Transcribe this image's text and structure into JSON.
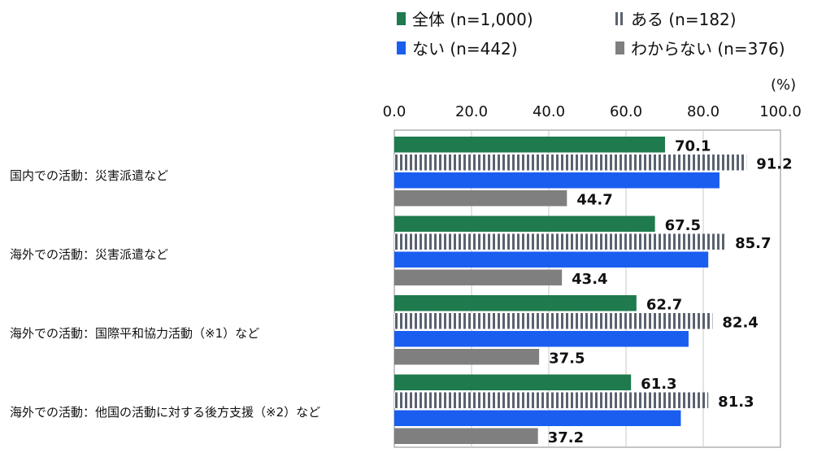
{
  "chart_data": {
    "type": "bar",
    "orientation": "horizontal",
    "unit": "(%)",
    "xlim": [
      0,
      100
    ],
    "ticks": [
      "0.0",
      "20.0",
      "40.0",
      "60.0",
      "80.0",
      "100.0"
    ],
    "categories": [
      "国内での活動：災害派遣など",
      "海外での活動：災害派遣など",
      "海外での活動：国際平和協力活動（※1）など",
      "海外での活動：他国の活動に対する後方支援（※2）など"
    ],
    "series": [
      {
        "name": "全体 (n=1,000)",
        "color": "#1f7a4d",
        "pattern": "solid",
        "values": [
          70.1,
          67.5,
          62.7,
          61.3
        ],
        "labels": [
          "70.1",
          "67.5",
          "62.7",
          "61.3"
        ]
      },
      {
        "name": "ある (n=182)",
        "color": "#5a6270",
        "pattern": "vertical-stripes",
        "values": [
          91.2,
          85.7,
          82.4,
          81.3
        ],
        "labels": [
          "91.2",
          "85.7",
          "82.4",
          "81.3"
        ]
      },
      {
        "name": "ない (n=442)",
        "color": "#1a5ef0",
        "pattern": "solid",
        "values": [
          84.2,
          81.3,
          76.2,
          74.2
        ],
        "labels": [
          "",
          "",
          "",
          ""
        ]
      },
      {
        "name": "わからない (n=376)",
        "color": "#7f7f7f",
        "pattern": "solid",
        "values": [
          44.7,
          43.4,
          37.5,
          37.2
        ],
        "labels": [
          "44.7",
          "43.4",
          "37.5",
          "37.2"
        ]
      }
    ],
    "legend_position": "top-right",
    "grid": true
  }
}
